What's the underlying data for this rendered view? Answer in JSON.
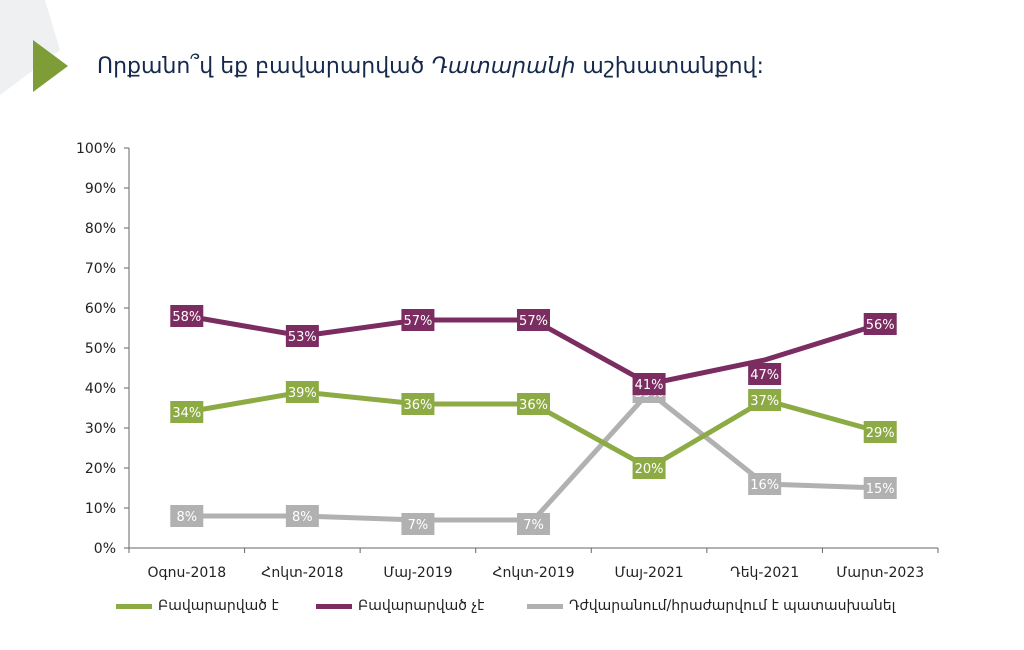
{
  "title": {
    "part1": "Որքանո՞վ եք բավարարված ",
    "part2": "Դատարանի",
    "part3": " աշխատանքով:"
  },
  "colors": {
    "title": "#15294b",
    "accent_triangle": "#7e9d37",
    "satisfied": "#8dab45",
    "not_satisfied": "#7b2d62",
    "hard_to_say": "#b1b1b1",
    "axis": "#666666"
  },
  "chart_data": {
    "type": "line",
    "categories": [
      "Օգոս-2018",
      "Հոկտ-2018",
      "Մայ-2019",
      "Հոկտ-2019",
      "Մայ-2021",
      "Դեկ-2021",
      "Մարտ-2023"
    ],
    "ylim": [
      0,
      100
    ],
    "yticks": [
      "0%",
      "10%",
      "20%",
      "30%",
      "40%",
      "50%",
      "60%",
      "70%",
      "80%",
      "90%",
      "100%"
    ],
    "series": [
      {
        "name": "Բավարարված է",
        "color": "#8dab45",
        "values": [
          34,
          39,
          36,
          36,
          20,
          37,
          29
        ],
        "labels": [
          "34%",
          "39%",
          "36%",
          "36%",
          "20%",
          "37%",
          "29%"
        ]
      },
      {
        "name": "Բավարարված չէ",
        "color": "#7b2d62",
        "values": [
          58,
          53,
          57,
          57,
          41,
          47,
          56
        ],
        "labels": [
          "58%",
          "53%",
          "57%",
          "57%",
          "41%",
          "47%",
          "56%"
        ]
      },
      {
        "name": "Դժվարանում/հրաժարվում է պատասխանել",
        "color": "#b1b1b1",
        "values": [
          8,
          8,
          7,
          7,
          39,
          16,
          15
        ],
        "labels": [
          "8%",
          "8%",
          "7%",
          "7%",
          "39%",
          "16%",
          "15%"
        ]
      }
    ],
    "legend_position": "bottom",
    "grid": false
  }
}
